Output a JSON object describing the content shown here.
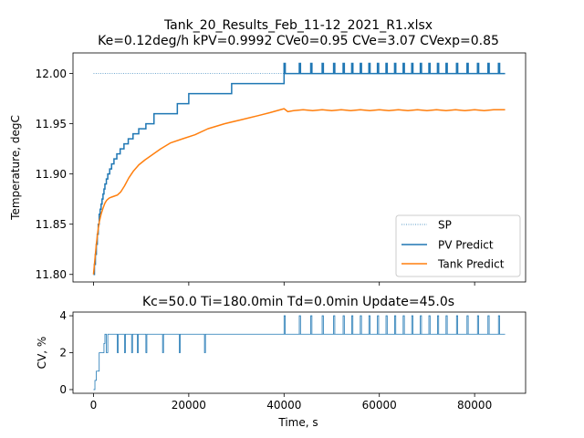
{
  "colors": {
    "sp": "#1f77b4",
    "pv": "#1f77b4",
    "tank": "#ff7f0e",
    "cv": "#1f77b4"
  },
  "chart_data": [
    {
      "type": "line",
      "title": "Tank_20_Results_Feb_11-12_2021_R1.xlsx",
      "subtitle": "Ke=0.12deg/h kPV=0.9992 CVe0=0.95 CVe=3.07 CVexp=0.85",
      "xlabel": "",
      "ylabel": "Temperature, degC",
      "xlim": [
        -4300,
        90700
      ],
      "ylim": [
        11.7925,
        12.0205
      ],
      "yticks": [
        11.8,
        11.85,
        11.9,
        11.95,
        12.0
      ],
      "ytick_labels": [
        "11.80",
        "11.85",
        "11.90",
        "11.95",
        "12.00"
      ],
      "legend_position": "lower-right",
      "grid": false,
      "series": [
        {
          "name": "SP",
          "style": "dotted",
          "x": [
            0,
            86400
          ],
          "values": [
            12.0,
            12.0
          ]
        },
        {
          "name": "PV Predict",
          "style": "step",
          "x": [
            0,
            200,
            400,
            600,
            800,
            1000,
            1200,
            1400,
            1600,
            1800,
            2000,
            2200,
            2400,
            2700,
            3000,
            3400,
            3800,
            4300,
            4900,
            5600,
            6400,
            7300,
            8300,
            9500,
            11000,
            12700,
            14900,
            17600,
            20000,
            23500,
            29000,
            40000,
            86400
          ],
          "values": [
            11.8,
            11.81,
            11.82,
            11.83,
            11.84,
            11.85,
            11.86,
            11.865,
            11.87,
            11.875,
            11.88,
            11.885,
            11.89,
            11.895,
            11.9,
            11.905,
            11.91,
            11.915,
            11.92,
            11.925,
            11.93,
            11.935,
            11.94,
            11.945,
            11.95,
            11.96,
            11.96,
            11.97,
            11.98,
            11.98,
            11.99,
            12.0,
            12.0
          ]
        },
        {
          "name": "Tank Predict",
          "style": "line",
          "x": [
            0,
            300,
            600,
            900,
            1200,
            1600,
            2000,
            2400,
            2800,
            3300,
            3800,
            4400,
            5000,
            5700,
            6500,
            7400,
            8400,
            9500,
            10800,
            12300,
            14100,
            16200,
            18700,
            21300,
            24000,
            27500,
            31000,
            34500,
            37000,
            40000,
            40800,
            42000,
            44000,
            46000,
            48000,
            50000,
            52000,
            54000,
            56000,
            58000,
            60000,
            62000,
            64000,
            66000,
            68000,
            70000,
            72000,
            74000,
            76000,
            78000,
            80000,
            82000,
            84000,
            86400
          ],
          "values": [
            11.8,
            11.815,
            11.83,
            11.842,
            11.852,
            11.86,
            11.866,
            11.871,
            11.874,
            11.876,
            11.877,
            11.878,
            11.879,
            11.882,
            11.888,
            11.896,
            11.903,
            11.909,
            11.914,
            11.919,
            11.925,
            11.931,
            11.935,
            11.939,
            11.945,
            11.95,
            11.954,
            11.958,
            11.961,
            11.965,
            11.962,
            11.963,
            11.964,
            11.963,
            11.964,
            11.963,
            11.964,
            11.963,
            11.964,
            11.963,
            11.964,
            11.963,
            11.964,
            11.963,
            11.964,
            11.963,
            11.964,
            11.963,
            11.964,
            11.963,
            11.964,
            11.963,
            11.964,
            11.964
          ]
        }
      ],
      "pv_spikes": {
        "times": [
          40000,
          43200,
          45600,
          48000,
          50400,
          52400,
          54200,
          56000,
          57800,
          59600,
          61400,
          63200,
          65000,
          66800,
          68600,
          70400,
          72200,
          74000,
          76200,
          78400,
          80600,
          82800,
          85000
        ],
        "peak": 12.01
      },
      "tank_wiggle_x": [
        40000,
        42000,
        44000,
        46000,
        48000,
        50000,
        52000,
        54000,
        56000,
        58000,
        60000,
        62000,
        64000,
        66000,
        68000,
        70000,
        72000,
        74000,
        76000,
        78000,
        80000,
        82000,
        84000,
        86400
      ]
    },
    {
      "type": "line",
      "title": "Kc=50.0 Ti=180.0min Td=0.0min Update=45.0s",
      "xlabel": "Time, s",
      "ylabel": "CV, %",
      "xlim": [
        -4300,
        90700
      ],
      "ylim": [
        -0.2,
        4.2
      ],
      "xticks": [
        0,
        20000,
        40000,
        60000,
        80000
      ],
      "xtick_labels": [
        "0",
        "20000",
        "40000",
        "60000",
        "80000"
      ],
      "yticks": [
        0,
        2,
        4
      ],
      "ytick_labels": [
        "0",
        "2",
        "4"
      ],
      "grid": false,
      "series": [
        {
          "name": "",
          "style": "step",
          "x": [
            0,
            300,
            600,
            900,
            1200,
            1800,
            2200,
            2400,
            2700,
            3000,
            3200,
            3500,
            5000,
            5200,
            5500,
            6500,
            6700,
            7000,
            8000,
            8200,
            8500,
            9200,
            9400,
            9700,
            11000,
            11200,
            11500,
            14500,
            14700,
            15000,
            18000,
            18200,
            18500,
            23300,
            23500,
            23800,
            40000,
            86400
          ],
          "values": [
            0,
            0.5,
            1,
            1,
            2,
            2,
            2.5,
            3,
            2,
            3,
            3,
            3,
            2,
            3,
            3,
            2,
            3,
            3,
            2,
            3,
            3,
            2,
            3,
            3,
            2,
            3,
            3,
            2,
            3,
            3,
            2,
            3,
            3,
            2,
            3,
            3,
            3,
            3
          ]
        }
      ],
      "cv_spikes": {
        "times": [
          40000,
          43200,
          45600,
          48000,
          50400,
          52400,
          54200,
          56000,
          57800,
          59600,
          61400,
          63200,
          65000,
          66800,
          68600,
          70400,
          72200,
          74000,
          76200,
          78400,
          80600,
          82800,
          85000
        ],
        "peak": 4.0,
        "base": 3.0
      }
    }
  ],
  "legend": [
    {
      "label": "SP",
      "style": "dotted"
    },
    {
      "label": "PV Predict",
      "style": "solid-blue"
    },
    {
      "label": "Tank Predict",
      "style": "solid-orange"
    }
  ]
}
